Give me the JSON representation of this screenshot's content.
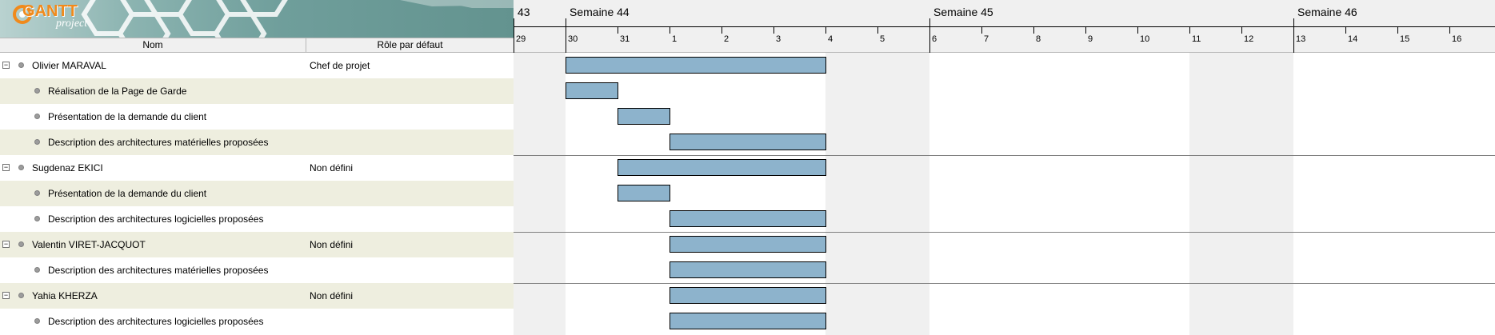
{
  "logo": {
    "brand": "GANTT",
    "sub": "project"
  },
  "columns": {
    "name": "Nom",
    "role": "Rôle par défaut"
  },
  "rows": [
    {
      "kind": "resource",
      "name": "Olivier MARAVAL",
      "role": "Chef de projet",
      "toggle": "−",
      "start_day": 1,
      "end_day": 6
    },
    {
      "kind": "task",
      "name": "Réalisation de la Page de Garde",
      "start_day": 1,
      "end_day": 2
    },
    {
      "kind": "task",
      "name": "Présentation de la demande du client",
      "start_day": 2,
      "end_day": 3
    },
    {
      "kind": "task",
      "name": "Description des architectures matérielles proposées",
      "start_day": 3,
      "end_day": 6
    },
    {
      "kind": "resource",
      "name": "Sugdenaz EKICI",
      "role": "Non défini",
      "toggle": "−",
      "start_day": 2,
      "end_day": 6
    },
    {
      "kind": "task",
      "name": "Présentation de la demande du client",
      "start_day": 2,
      "end_day": 3
    },
    {
      "kind": "task",
      "name": "Description des architectures logicielles proposées",
      "start_day": 3,
      "end_day": 6
    },
    {
      "kind": "resource",
      "name": "Valentin VIRET-JACQUOT",
      "role": "Non défini",
      "toggle": "−",
      "start_day": 3,
      "end_day": 6
    },
    {
      "kind": "task",
      "name": "Description des architectures matérielles proposées",
      "start_day": 3,
      "end_day": 6
    },
    {
      "kind": "resource",
      "name": "Yahia KHERZA",
      "role": "Non défini",
      "toggle": "−",
      "start_day": 3,
      "end_day": 6
    },
    {
      "kind": "task",
      "name": "Description des architectures logicielles proposées",
      "start_day": 3,
      "end_day": 6
    }
  ],
  "timeline": {
    "weeks": [
      {
        "label": "43",
        "day": 0
      },
      {
        "label": "Semaine 44",
        "day": 1
      },
      {
        "label": "Semaine 45",
        "day": 8
      },
      {
        "label": "Semaine 46",
        "day": 15
      }
    ],
    "days": [
      "29",
      "30",
      "31",
      "1",
      "2",
      "3",
      "4",
      "5",
      "6",
      "7",
      "8",
      "9",
      "10",
      "11",
      "12",
      "13",
      "14",
      "15",
      "16"
    ],
    "weekend_days": [
      0,
      6,
      7,
      13,
      14
    ]
  },
  "colors": {
    "bar": "#8db3cc",
    "weekend": "#f0f0f0",
    "alt_row": "#eeeedf"
  }
}
